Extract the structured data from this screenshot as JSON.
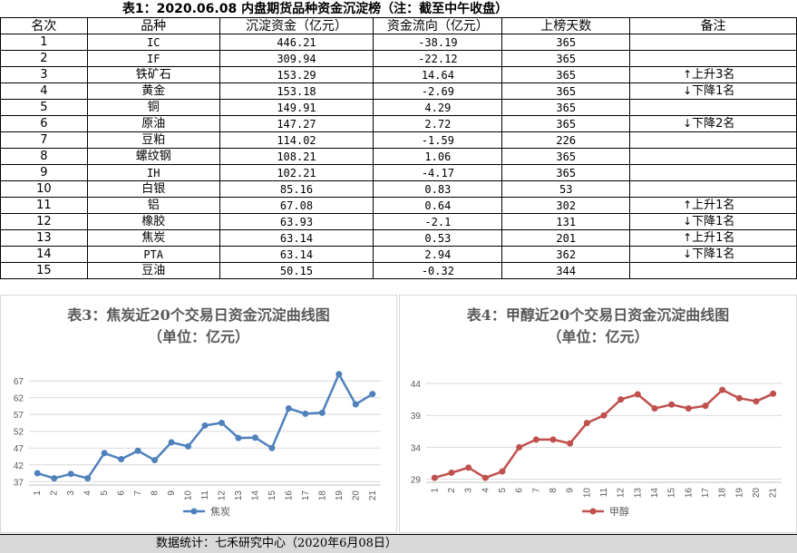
{
  "table": {
    "title": "表1：2020.06.08 内盘期货品种资金沉淀榜（注：截至中午收盘）",
    "headers": [
      "名次",
      "品种",
      "沉淀资金（亿元）",
      "资金流向（亿元）",
      "上榜天数",
      "备注"
    ],
    "rows": [
      {
        "rank": "1",
        "name": "IC",
        "fund": "446.21",
        "flow": "-38.19",
        "days": "365",
        "note": "",
        "dir": ""
      },
      {
        "rank": "2",
        "name": "IF",
        "fund": "309.94",
        "flow": "-22.12",
        "days": "365",
        "note": "",
        "dir": ""
      },
      {
        "rank": "3",
        "name": "铁矿石",
        "fund": "153.29",
        "flow": "14.64",
        "days": "365",
        "note": "上升3名",
        "dir": "up"
      },
      {
        "rank": "4",
        "name": "黄金",
        "fund": "153.18",
        "flow": "-2.69",
        "days": "365",
        "note": "下降1名",
        "dir": "down"
      },
      {
        "rank": "5",
        "name": "铜",
        "fund": "149.91",
        "flow": "4.29",
        "days": "365",
        "note": "",
        "dir": ""
      },
      {
        "rank": "6",
        "name": "原油",
        "fund": "147.27",
        "flow": "2.72",
        "days": "365",
        "note": "下降2名",
        "dir": "down"
      },
      {
        "rank": "7",
        "name": "豆粕",
        "fund": "114.02",
        "flow": "-1.59",
        "days": "226",
        "note": "",
        "dir": ""
      },
      {
        "rank": "8",
        "name": "螺纹钢",
        "fund": "108.21",
        "flow": "1.06",
        "days": "365",
        "note": "",
        "dir": ""
      },
      {
        "rank": "9",
        "name": "IH",
        "fund": "102.21",
        "flow": "-4.17",
        "days": "365",
        "note": "",
        "dir": ""
      },
      {
        "rank": "10",
        "name": "白银",
        "fund": "85.16",
        "flow": "0.83",
        "days": "53",
        "note": "",
        "dir": ""
      },
      {
        "rank": "11",
        "name": "铝",
        "fund": "67.08",
        "flow": "0.64",
        "days": "302",
        "note": "上升1名",
        "dir": "up"
      },
      {
        "rank": "12",
        "name": "橡胶",
        "fund": "63.93",
        "flow": "-2.1",
        "days": "131",
        "note": "下降1名",
        "dir": "down"
      },
      {
        "rank": "13",
        "name": "焦炭",
        "fund": "63.14",
        "flow": "0.53",
        "days": "201",
        "note": "上升1名",
        "dir": "up"
      },
      {
        "rank": "14",
        "name": "PTA",
        "fund": "63.14",
        "flow": "2.94",
        "days": "362",
        "note": "下降1名",
        "dir": "down"
      },
      {
        "rank": "15",
        "name": "豆油",
        "fund": "50.15",
        "flow": "-0.32",
        "days": "344",
        "note": "",
        "dir": ""
      }
    ]
  },
  "chart_data": [
    {
      "type": "line",
      "title": "表3：焦炭近20个交易日资金沉淀曲线图",
      "subtitle": "（单位：亿元）",
      "x": [
        "1",
        "2",
        "3",
        "4",
        "5",
        "6",
        "7",
        "8",
        "9",
        "10",
        "11",
        "12",
        "13",
        "14",
        "15",
        "16",
        "17",
        "18",
        "19",
        "20",
        "21"
      ],
      "series": [
        {
          "name": "焦炭",
          "color": "#4f81bd",
          "values": [
            39.5,
            38.0,
            39.3,
            38.0,
            45.5,
            43.7,
            46.2,
            43.4,
            48.7,
            47.5,
            53.7,
            54.5,
            50.0,
            50.1,
            47.0,
            58.8,
            57.2,
            57.5,
            69.0,
            60.0,
            63.1
          ]
        }
      ],
      "yticks": [
        37,
        42,
        47,
        52,
        57,
        62,
        67
      ],
      "ylim": [
        36,
        70
      ],
      "grid": true,
      "legend": "bottom"
    },
    {
      "type": "line",
      "title": "表4：甲醇近20个交易日资金沉淀曲线图",
      "subtitle": "（单位：亿元）",
      "x": [
        "1",
        "2",
        "3",
        "4",
        "5",
        "6",
        "7",
        "8",
        "9",
        "10",
        "11",
        "12",
        "13",
        "14",
        "15",
        "16",
        "17",
        "18",
        "19",
        "20",
        "21"
      ],
      "series": [
        {
          "name": "甲醇",
          "color": "#c0504d",
          "values": [
            29.2,
            30.0,
            30.8,
            29.2,
            30.2,
            34.0,
            35.2,
            35.2,
            34.6,
            37.8,
            39.0,
            41.5,
            42.3,
            40.1,
            40.7,
            40.1,
            40.5,
            43.0,
            41.7,
            41.2,
            42.4
          ]
        }
      ],
      "yticks": [
        29,
        34,
        39,
        44
      ],
      "ylim": [
        28.5,
        46
      ],
      "grid": true,
      "legend": "bottom"
    }
  ],
  "footer": "数据统计：七禾研究中心（2020年6月08日）"
}
